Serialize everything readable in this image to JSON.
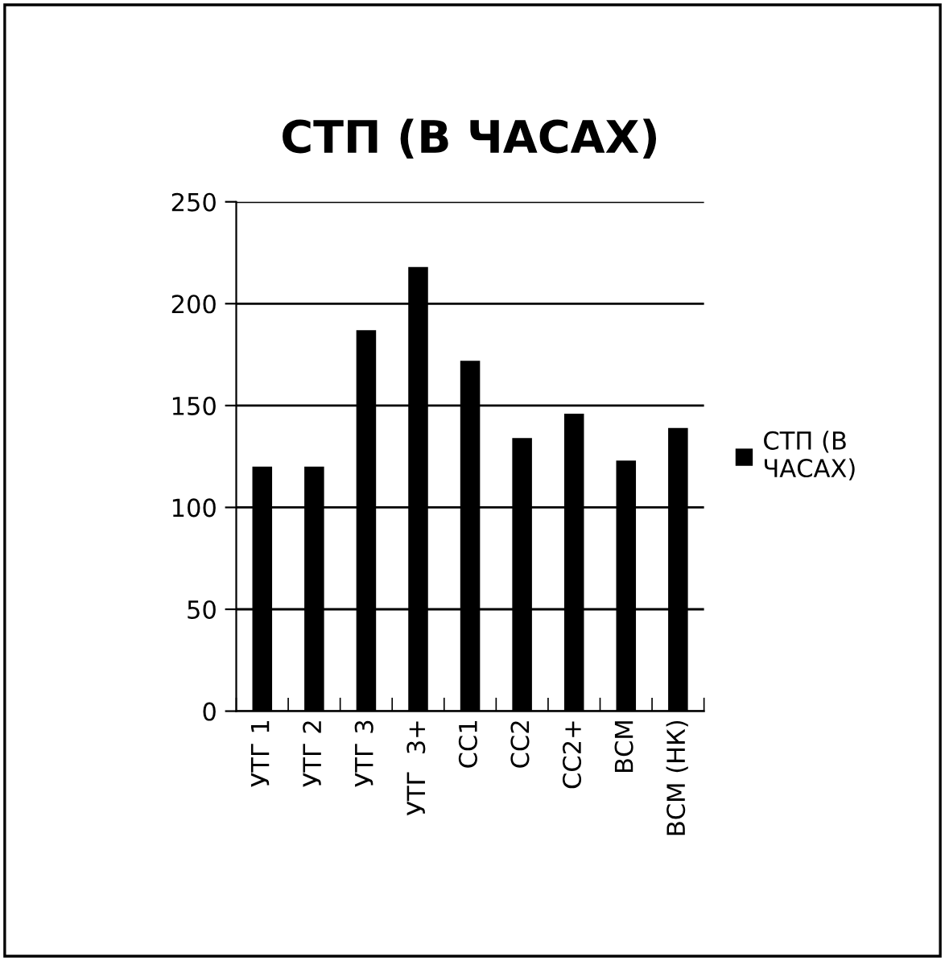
{
  "chart_data": {
    "type": "bar",
    "title": "СТП (В ЧАСАХ)",
    "categories": [
      "УТГ 1",
      "УТГ 2",
      "УТГ 3",
      "УТГ  3+",
      "СС1",
      "СС2",
      "СС2+",
      "ВСМ",
      "ВСМ (НК)"
    ],
    "series": [
      {
        "name": "СТП (В ЧАСАХ)",
        "color": "#000000",
        "values": [
          120,
          120,
          187,
          218,
          172,
          134,
          146,
          123,
          139
        ]
      }
    ],
    "ylim": [
      0,
      250
    ],
    "yticks": [
      0,
      50,
      100,
      150,
      200,
      250
    ],
    "grid": "y",
    "legend": "right"
  }
}
